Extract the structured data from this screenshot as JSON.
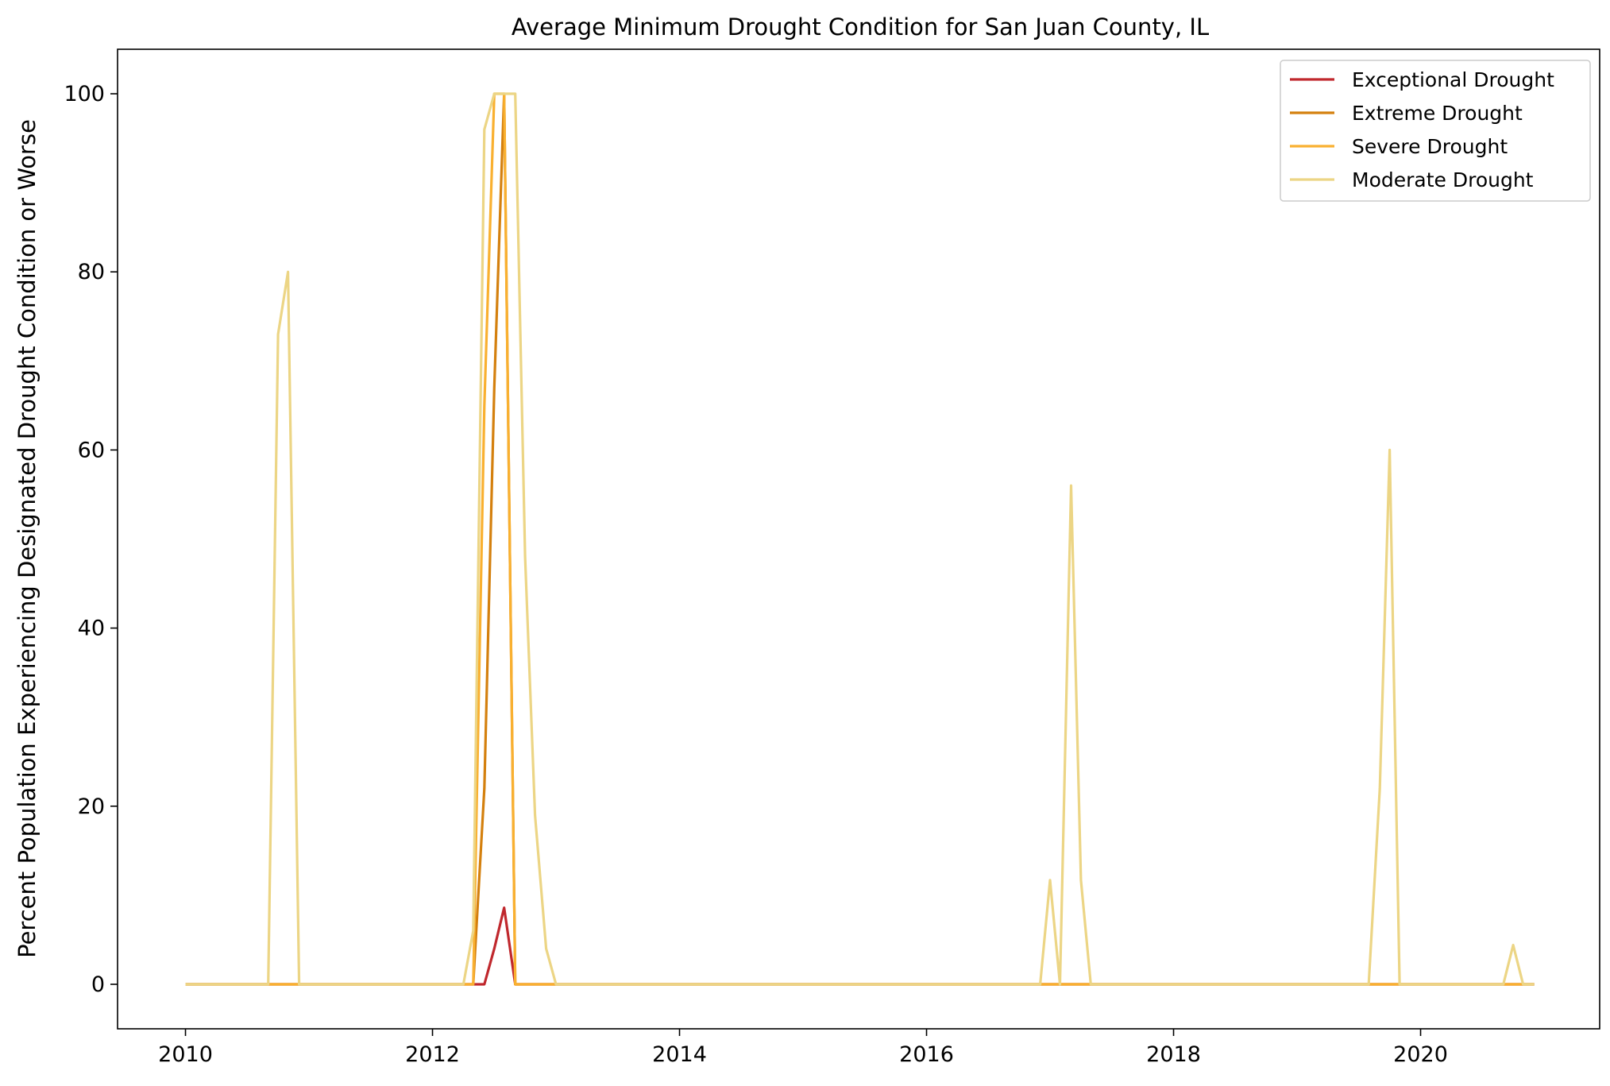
{
  "chart_data": {
    "type": "line",
    "title": "Average Minimum Drought Condition for San Juan County, IL",
    "xlabel": "",
    "ylabel": "Percent Population Experiencing Designated Drought Condition or Worse",
    "xlim": [
      2009.45,
      2021.45
    ],
    "ylim": [
      -5,
      105
    ],
    "x_ticks": [
      2010,
      2012,
      2014,
      2016,
      2018,
      2020
    ],
    "x_tick_labels": [
      "2010",
      "2012",
      "2014",
      "2016",
      "2018",
      "2020"
    ],
    "y_ticks": [
      0,
      20,
      40,
      60,
      80,
      100
    ],
    "y_tick_labels": [
      "0",
      "20",
      "40",
      "60",
      "80",
      "100"
    ],
    "grid": false,
    "legend_position": "top-right",
    "series": [
      {
        "name": "Exceptional Drought",
        "color": "#c0282d",
        "points": [
          [
            2010.0,
            0
          ],
          [
            2012.33,
            0
          ],
          [
            2012.42,
            0
          ],
          [
            2012.5,
            4
          ],
          [
            2012.58,
            8.6
          ],
          [
            2012.67,
            0
          ],
          [
            2020.92,
            0
          ]
        ]
      },
      {
        "name": "Extreme Drought",
        "color": "#d4800e",
        "points": [
          [
            2010.0,
            0
          ],
          [
            2012.33,
            0
          ],
          [
            2012.42,
            22
          ],
          [
            2012.5,
            67
          ],
          [
            2012.58,
            100
          ],
          [
            2012.67,
            0
          ],
          [
            2020.92,
            0
          ]
        ]
      },
      {
        "name": "Severe Drought",
        "color": "#f9b030",
        "points": [
          [
            2010.0,
            0
          ],
          [
            2012.33,
            0
          ],
          [
            2012.42,
            65
          ],
          [
            2012.5,
            100
          ],
          [
            2012.58,
            100
          ],
          [
            2012.67,
            0
          ],
          [
            2020.92,
            0
          ]
        ]
      },
      {
        "name": "Moderate Drought",
        "color": "#ecd585",
        "points": [
          [
            2010.0,
            0
          ],
          [
            2010.67,
            0
          ],
          [
            2010.75,
            73
          ],
          [
            2010.83,
            80
          ],
          [
            2010.92,
            0
          ],
          [
            2012.25,
            0
          ],
          [
            2012.33,
            6
          ],
          [
            2012.42,
            96
          ],
          [
            2012.5,
            100
          ],
          [
            2012.58,
            100
          ],
          [
            2012.67,
            100
          ],
          [
            2012.75,
            48
          ],
          [
            2012.83,
            19
          ],
          [
            2012.92,
            4
          ],
          [
            2013.0,
            0
          ],
          [
            2016.92,
            0
          ],
          [
            2017.0,
            11.7
          ],
          [
            2017.08,
            0
          ],
          [
            2017.17,
            56
          ],
          [
            2017.25,
            11.7
          ],
          [
            2017.33,
            0
          ],
          [
            2019.58,
            0
          ],
          [
            2019.67,
            22
          ],
          [
            2019.75,
            60
          ],
          [
            2019.83,
            0
          ],
          [
            2020.67,
            0
          ],
          [
            2020.75,
            4.4
          ],
          [
            2020.83,
            0
          ],
          [
            2020.92,
            0
          ]
        ]
      }
    ]
  }
}
